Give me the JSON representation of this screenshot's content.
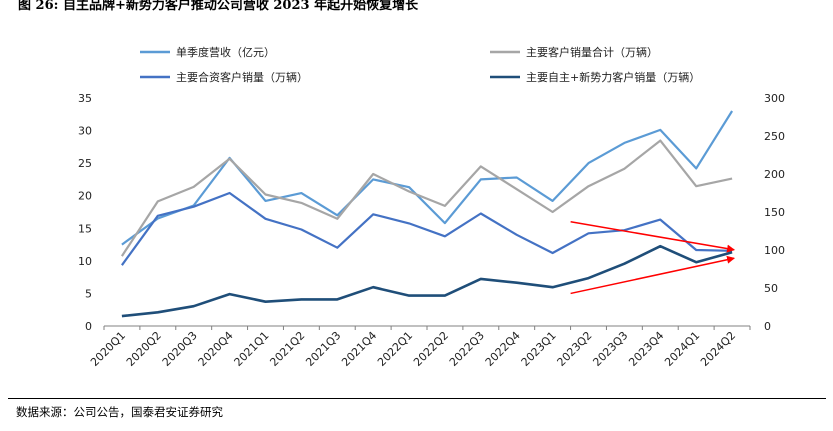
{
  "figure": {
    "title": "图 26: 自主品牌+新势力客户推动公司营收 2023 年起开始恢复增长",
    "source": "数据来源：公司公告，国泰君安证券研究"
  },
  "chart_data": {
    "type": "line",
    "categories": [
      "2020Q1",
      "2020Q2",
      "2020Q3",
      "2020Q4",
      "2021Q1",
      "2021Q2",
      "2021Q3",
      "2021Q4",
      "2022Q1",
      "2022Q2",
      "2022Q3",
      "2022Q4",
      "2023Q1",
      "2023Q2",
      "2023Q3",
      "2023Q4",
      "2024Q1",
      "2024Q2"
    ],
    "y_left": {
      "ylim": [
        0,
        35
      ],
      "ticks": [
        0,
        5,
        10,
        15,
        20,
        25,
        30,
        35
      ]
    },
    "y_right": {
      "ylim": [
        0,
        300
      ],
      "ticks": [
        0,
        50,
        100,
        150,
        200,
        250,
        300
      ]
    },
    "grid": false,
    "legend_position": "top",
    "series": [
      {
        "name": "单季度营收（亿元）",
        "axis": "left",
        "color": "#5b9bd5",
        "values": [
          12.5,
          16.5,
          18.5,
          25.8,
          19.2,
          20.4,
          17.0,
          22.5,
          21.3,
          15.8,
          22.5,
          22.8,
          19.2,
          25.0,
          28.1,
          30.1,
          24.2,
          33.0
        ]
      },
      {
        "name": "主要客户销量合计（万辆）",
        "axis": "right",
        "color": "#a6a6a6",
        "values": [
          92,
          164,
          183,
          220,
          173,
          162,
          141,
          200,
          177,
          158,
          210,
          180,
          150,
          184,
          207,
          244,
          184,
          194
        ]
      },
      {
        "name": "主要合资客户销量（万辆）",
        "axis": "right",
        "color": "#4472c4",
        "values": [
          80,
          145,
          157,
          175,
          141,
          127,
          103,
          147,
          135,
          118,
          148,
          120,
          96,
          122,
          126,
          140,
          100,
          99
        ]
      },
      {
        "name": "主要自主+新势力客户销量（万辆）",
        "axis": "right",
        "color": "#1f4e79",
        "values": [
          13,
          18,
          26,
          42,
          32,
          35,
          35,
          51,
          40,
          40,
          62,
          57,
          51,
          63,
          82,
          105,
          84,
          97
        ]
      }
    ],
    "annotations": [
      {
        "type": "arrow",
        "color": "#ff0000",
        "from": [
          "2023Q1",
          16
        ],
        "to": [
          "2024Q2",
          11.7
        ],
        "axis": "left"
      },
      {
        "type": "arrow",
        "color": "#ff0000",
        "from": [
          "2023Q1",
          5.0
        ],
        "to": [
          "2024Q2",
          10.4
        ],
        "axis": "left"
      }
    ]
  }
}
